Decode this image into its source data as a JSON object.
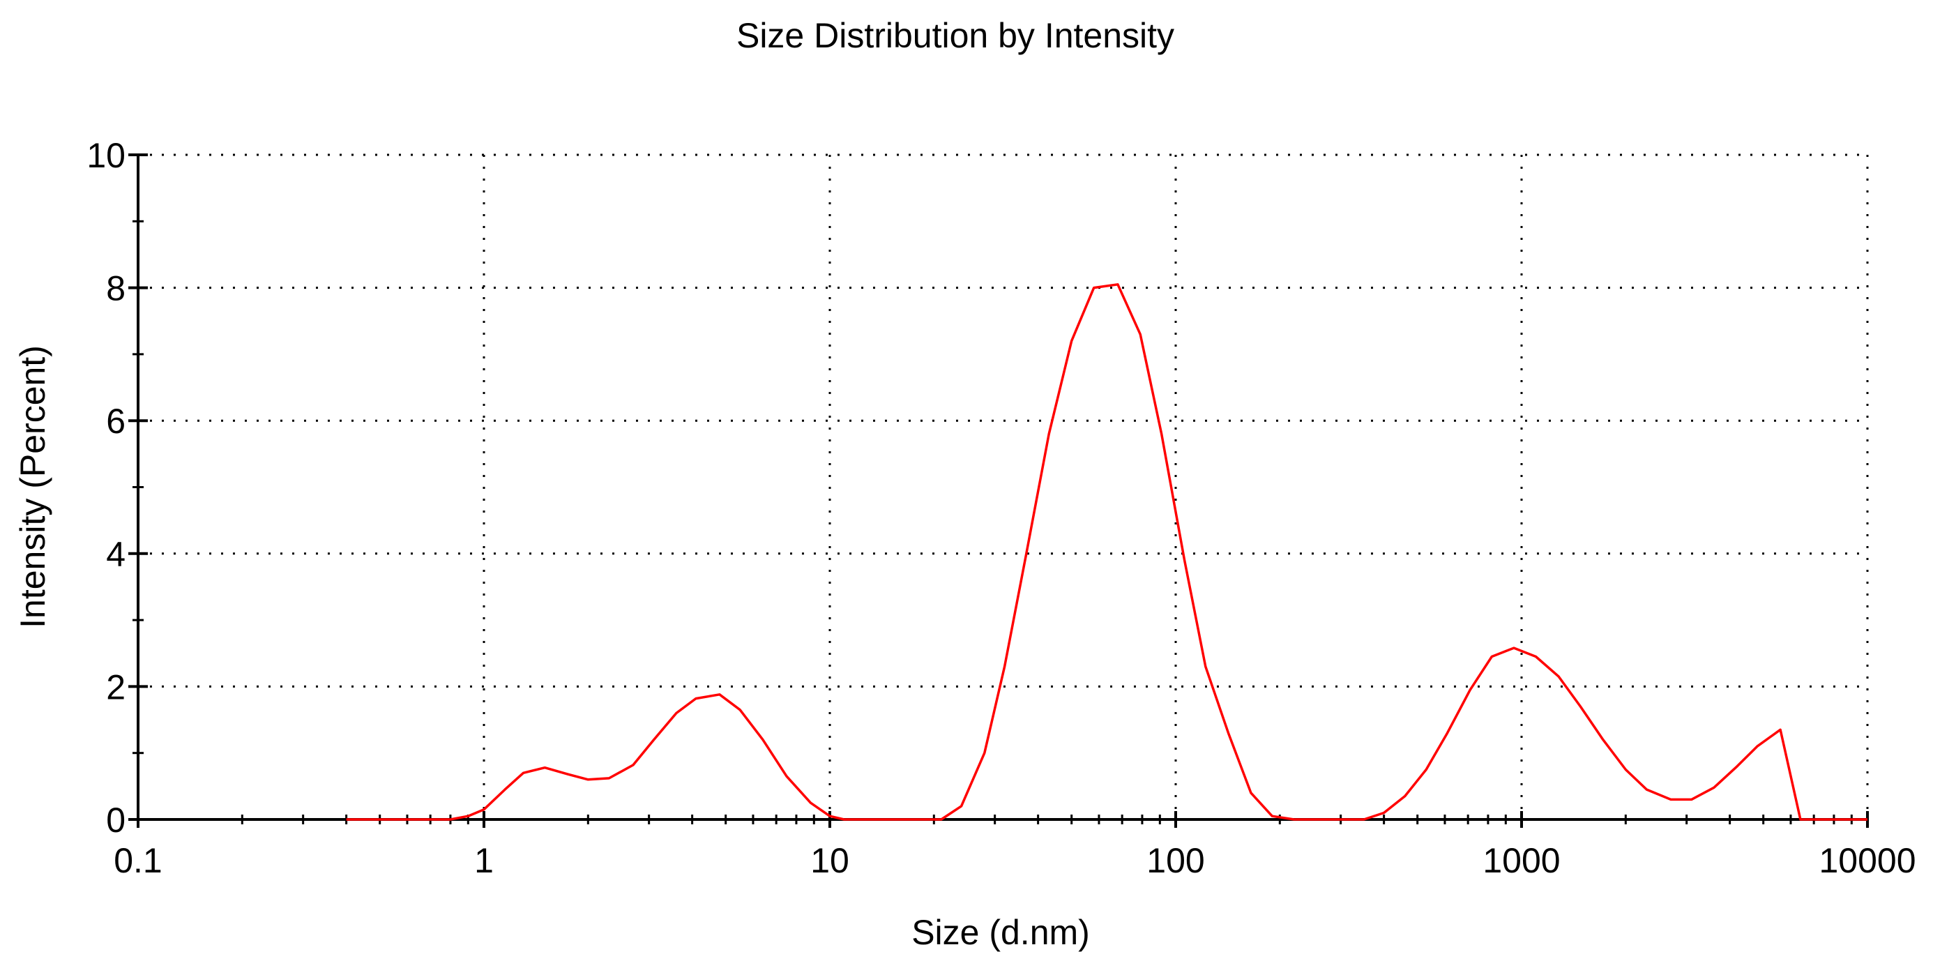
{
  "chart_data": {
    "type": "line",
    "title": "Size Distribution by Intensity",
    "xlabel": "Size (d.nm)",
    "ylabel": "Intensity (Percent)",
    "x_scale": "log",
    "xlim": [
      0.1,
      10000
    ],
    "ylim": [
      0,
      10
    ],
    "x_ticks": [
      0.1,
      1,
      10,
      100,
      1000,
      10000
    ],
    "x_tick_labels": [
      "0.1",
      "1",
      "10",
      "100",
      "1000",
      "10000"
    ],
    "y_ticks": [
      0,
      2,
      4,
      6,
      8,
      10
    ],
    "y_tick_labels": [
      "0",
      "2",
      "4",
      "6",
      "8",
      "10"
    ],
    "grid": true,
    "legend": "none",
    "series": [
      {
        "color": "#ff0000",
        "x": [
          0.4,
          0.8,
          0.9,
          1.0,
          1.15,
          1.3,
          1.5,
          1.75,
          2.0,
          2.3,
          2.7,
          3.1,
          3.6,
          4.1,
          4.8,
          5.5,
          6.4,
          7.5,
          8.8,
          10.0,
          11.0,
          13,
          17,
          21,
          24,
          28,
          32,
          37,
          43,
          50,
          58,
          68,
          79,
          91,
          106,
          122,
          142,
          165,
          190,
          220,
          350,
          400,
          460,
          530,
          610,
          710,
          820,
          950,
          1100,
          1280,
          1480,
          1720,
          2000,
          2300,
          2700,
          3100,
          3600,
          4200,
          4800,
          5600,
          6400,
          7500,
          10000
        ],
        "y": [
          0,
          0,
          0.05,
          0.15,
          0.45,
          0.7,
          0.78,
          0.68,
          0.6,
          0.62,
          0.82,
          1.2,
          1.6,
          1.82,
          1.88,
          1.65,
          1.2,
          0.65,
          0.25,
          0.05,
          0,
          0,
          0,
          0,
          0.2,
          1.0,
          2.3,
          4.0,
          5.8,
          7.2,
          8.0,
          8.05,
          7.3,
          5.8,
          3.9,
          2.3,
          1.3,
          0.4,
          0.05,
          0,
          0,
          0.1,
          0.35,
          0.75,
          1.3,
          1.95,
          2.45,
          2.58,
          2.45,
          2.15,
          1.7,
          1.2,
          0.75,
          0.45,
          0.3,
          0.3,
          0.48,
          0.8,
          1.1,
          1.35,
          0,
          0,
          0
        ]
      }
    ]
  }
}
